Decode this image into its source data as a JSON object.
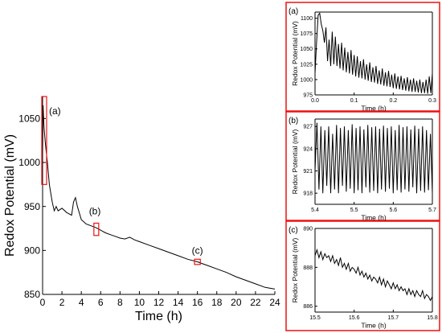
{
  "chart_data": [
    {
      "type": "line",
      "xlabel": "Time (h)",
      "ylabel": "Redox Potential (mV)",
      "xlim": [
        0,
        24
      ],
      "ylim": [
        850,
        1075
      ],
      "xticks": [
        "0",
        "2",
        "4",
        "6",
        "8",
        "10",
        "12",
        "14",
        "16",
        "18",
        "20",
        "22",
        "24"
      ],
      "yticks": [
        "850",
        "900",
        "950",
        "1000",
        "1050"
      ],
      "series": [
        {
          "x": [
            0,
            0.05,
            0.15,
            0.3,
            0.5,
            0.7,
            0.85,
            1.0,
            1.2,
            1.4,
            1.6,
            2.0,
            2.5,
            3.0,
            3.2,
            3.4,
            3.6,
            4.0,
            4.5,
            5.0,
            5.5,
            6.0,
            6.5,
            7.0,
            7.5,
            8.0,
            8.5,
            9.0,
            9.5,
            10.0,
            11.0,
            12.0,
            13.0,
            14.0,
            15.0,
            16.0,
            17.0,
            18.0,
            19.0,
            20.0,
            21.0,
            22.0,
            23.0,
            24.0
          ],
          "y": [
            1010,
            1065,
            1040,
            1020,
            1000,
            975,
            965,
            955,
            945,
            950,
            945,
            948,
            943,
            940,
            955,
            960,
            950,
            935,
            930,
            928,
            926,
            923,
            920,
            918,
            916,
            914,
            913,
            915,
            912,
            910,
            906,
            902,
            898,
            894,
            890,
            887,
            883,
            879,
            875,
            870,
            866,
            862,
            858,
            856
          ]
        }
      ],
      "annotations": [
        "(a)",
        "(b)",
        "(c)"
      ]
    },
    {
      "type": "line",
      "panel_label": "(a)",
      "xlabel": "Time (h)",
      "ylabel": "Redox Potential (mV)",
      "xlim": [
        0,
        0.3
      ],
      "ylim": [
        975,
        1110
      ],
      "xticks": [
        "0.0",
        "0.1",
        "0.2",
        "0.3"
      ],
      "yticks": [
        "975",
        "1000",
        "1025",
        "1050",
        "1075",
        "1100"
      ],
      "series": [
        {
          "x": [
            0.0,
            0.004,
            0.008,
            0.012,
            0.016,
            0.02,
            0.024,
            0.028,
            0.032,
            0.036,
            0.04,
            0.044,
            0.048,
            0.052,
            0.056,
            0.06,
            0.064,
            0.068,
            0.072,
            0.076,
            0.08,
            0.084,
            0.088,
            0.092,
            0.096,
            0.1,
            0.104,
            0.108,
            0.112,
            0.116,
            0.12,
            0.124,
            0.128,
            0.132,
            0.136,
            0.14,
            0.144,
            0.148,
            0.152,
            0.156,
            0.16,
            0.164,
            0.168,
            0.172,
            0.176,
            0.18,
            0.184,
            0.188,
            0.192,
            0.196,
            0.2,
            0.204,
            0.208,
            0.212,
            0.216,
            0.22,
            0.224,
            0.228,
            0.232,
            0.236,
            0.24,
            0.244,
            0.248,
            0.252,
            0.256,
            0.26,
            0.264,
            0.268,
            0.272,
            0.276,
            0.28,
            0.284,
            0.288,
            0.292,
            0.296,
            0.3
          ],
          "y": [
            1010,
            1060,
            1105,
            1108,
            1090,
            1080,
            1060,
            1085,
            1030,
            1065,
            1022,
            1078,
            1025,
            1070,
            1022,
            1058,
            1018,
            1060,
            1015,
            1052,
            1012,
            1045,
            1010,
            1048,
            1008,
            1040,
            1005,
            1038,
            1003,
            1030,
            1002,
            1033,
            1000,
            1025,
            998,
            1028,
            996,
            1020,
            995,
            1022,
            993,
            1015,
            992,
            1018,
            990,
            1012,
            989,
            1014,
            988,
            1008,
            986,
            1010,
            985,
            1005,
            984,
            1006,
            983,
            1002,
            982,
            1004,
            981,
            1000,
            980,
            1002,
            980,
            998,
            979,
            1000,
            978,
            996,
            978,
            1000,
            977,
            1005,
            978,
            1010
          ]
        }
      ]
    },
    {
      "type": "line",
      "panel_label": "(b)",
      "xlabel": "Time (h)",
      "ylabel": "Redox Potential (mV)",
      "xlim": [
        5.4,
        5.7
      ],
      "ylim": [
        916.5,
        928
      ],
      "xticks": [
        "5.4",
        "5.5",
        "5.6",
        "5.7"
      ],
      "yticks": [
        "918",
        "921",
        "924",
        "927"
      ],
      "series": [
        {
          "x": [
            5.4,
            5.405,
            5.41,
            5.415,
            5.42,
            5.425,
            5.43,
            5.435,
            5.44,
            5.445,
            5.45,
            5.455,
            5.46,
            5.465,
            5.47,
            5.475,
            5.48,
            5.485,
            5.49,
            5.495,
            5.5,
            5.505,
            5.51,
            5.515,
            5.52,
            5.525,
            5.53,
            5.535,
            5.54,
            5.545,
            5.55,
            5.555,
            5.56,
            5.565,
            5.57,
            5.575,
            5.58,
            5.585,
            5.59,
            5.595,
            5.6,
            5.605,
            5.61,
            5.615,
            5.62,
            5.625,
            5.63,
            5.635,
            5.64,
            5.645,
            5.65,
            5.655,
            5.66,
            5.665,
            5.67,
            5.675,
            5.68,
            5.685,
            5.69,
            5.695,
            5.7
          ],
          "y": [
            921,
            927.5,
            918.5,
            927,
            918,
            926.5,
            919,
            927,
            918,
            926,
            918.5,
            927.2,
            918,
            926.8,
            919,
            927,
            918.2,
            926.5,
            918.6,
            927.3,
            918,
            926.8,
            918.4,
            927,
            918,
            926.6,
            918.8,
            927.2,
            918.1,
            926.9,
            918.3,
            927,
            918,
            926.7,
            918.5,
            927.1,
            918.2,
            926.8,
            918.6,
            927,
            918,
            926.5,
            918.4,
            927.2,
            918.1,
            926.9,
            918.5,
            927,
            918.2,
            926.6,
            918.8,
            927.1,
            918,
            926.7,
            918.3,
            927,
            918.1,
            926.5,
            918.4,
            926,
            918
          ]
        }
      ]
    },
    {
      "type": "line",
      "panel_label": "(c)",
      "xlabel": "Time (h)",
      "ylabel": "Redox Potential (mV)",
      "xlim": [
        15.5,
        15.8
      ],
      "ylim": [
        885.7,
        890
      ],
      "xticks": [
        "15.5",
        "15.6",
        "15.7",
        "15.8"
      ],
      "yticks": [
        "886",
        "888",
        "890"
      ],
      "series": [
        {
          "x": [
            15.5,
            15.505,
            15.51,
            15.515,
            15.52,
            15.525,
            15.53,
            15.535,
            15.54,
            15.545,
            15.55,
            15.555,
            15.56,
            15.565,
            15.57,
            15.575,
            15.58,
            15.585,
            15.59,
            15.595,
            15.6,
            15.605,
            15.61,
            15.615,
            15.62,
            15.625,
            15.63,
            15.635,
            15.64,
            15.645,
            15.65,
            15.655,
            15.66,
            15.665,
            15.67,
            15.675,
            15.68,
            15.685,
            15.69,
            15.695,
            15.7,
            15.705,
            15.71,
            15.715,
            15.72,
            15.725,
            15.73,
            15.735,
            15.74,
            15.745,
            15.75,
            15.755,
            15.76,
            15.765,
            15.77,
            15.775,
            15.78,
            15.785,
            15.79,
            15.795,
            15.8
          ],
          "y": [
            888.6,
            888.9,
            888.5,
            888.8,
            888.4,
            888.7,
            888.5,
            888.6,
            888.3,
            888.6,
            888.2,
            888.4,
            888.1,
            888.5,
            888.0,
            888.2,
            887.9,
            888.2,
            887.8,
            888.0,
            887.9,
            887.7,
            888.0,
            887.6,
            887.8,
            887.5,
            887.7,
            887.4,
            887.6,
            887.3,
            887.5,
            887.4,
            887.2,
            887.5,
            887.1,
            887.4,
            887.0,
            887.3,
            887.1,
            886.9,
            887.2,
            886.9,
            887.1,
            886.8,
            887.0,
            886.8,
            886.9,
            886.6,
            886.9,
            886.6,
            886.8,
            886.5,
            886.8,
            886.6,
            886.5,
            886.8,
            886.4,
            886.6,
            886.5,
            886.3,
            886.5
          ]
        }
      ]
    }
  ]
}
